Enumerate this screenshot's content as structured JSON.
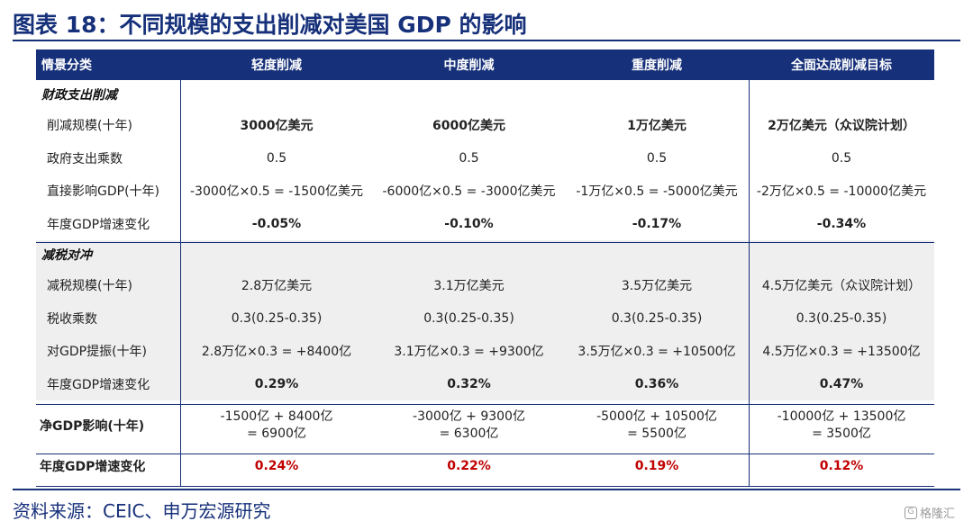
{
  "title": "图表 18：不同规模的支出削减对美国 GDP 的影响",
  "header": [
    "情景分类",
    "轻度削减",
    "中度削减",
    "重度削减",
    "全面达成削减目标"
  ],
  "fiscal": {
    "label": "财政支出削减",
    "rows": [
      {
        "label": "削减规模(十年)",
        "values": [
          "3000亿美元",
          "6000亿美元",
          "1万亿美元",
          "2万亿美元（众议院计划）"
        ]
      },
      {
        "label": "政府支出乘数",
        "values": [
          "0.5",
          "0.5",
          "0.5",
          "0.5"
        ]
      },
      {
        "label": "直接影响GDP(十年)",
        "values": [
          "-3000亿×0.5 = -1500亿美元",
          "-6000亿×0.5 = -3000亿美元",
          "-1万亿×0.5 = -5000亿美元",
          "-2万亿×0.5 = -10000亿美元"
        ]
      },
      {
        "label": "年度GDP增速变化",
        "values": [
          "-0.05%",
          "-0.10%",
          "-0.17%",
          "-0.34%"
        ]
      }
    ]
  },
  "tax": {
    "label": "减税对冲",
    "rows": [
      {
        "label": "减税规模(十年)",
        "values": [
          "2.8万亿美元",
          "3.1万亿美元",
          "3.5万亿美元",
          "4.5万亿美元（众议院计划）"
        ]
      },
      {
        "label": "税收乘数",
        "values": [
          "0.3(0.25-0.35)",
          "0.3(0.25-0.35)",
          "0.3(0.25-0.35)",
          "0.3(0.25-0.35)"
        ]
      },
      {
        "label": "对GDP提振(十年)",
        "values": [
          "2.8万亿×0.3 = +8400亿",
          "3.1万亿×0.3 = +9300亿",
          "3.5万亿×0.3 = +10500亿",
          "4.5万亿×0.3 = +13500亿"
        ]
      },
      {
        "label": "年度GDP增速变化",
        "values": [
          "0.29%",
          "0.32%",
          "0.36%",
          "0.47%"
        ]
      }
    ]
  },
  "net": {
    "label": "净GDP影响(十年)",
    "values": [
      {
        "line1": "-1500亿 + 8400亿",
        "line2": "= 6900亿"
      },
      {
        "line1": "-3000亿 + 9300亿",
        "line2": "= 6300亿"
      },
      {
        "line1": "-5000亿 + 10500亿",
        "line2": "= 5500亿"
      },
      {
        "line1": "-10000亿 + 13500亿",
        "line2": "= 3500亿"
      }
    ]
  },
  "annual": {
    "label": "年度GDP增速变化",
    "values": [
      "0.24%",
      "0.22%",
      "0.19%",
      "0.12%"
    ]
  },
  "source": "资料来源：CEIC、申万宏源研究",
  "watermark": "格隆汇",
  "watermark_icon": "G",
  "colors": {
    "brand": "#16307a",
    "highlight": "#c00000",
    "section_bg": "#efefef"
  }
}
